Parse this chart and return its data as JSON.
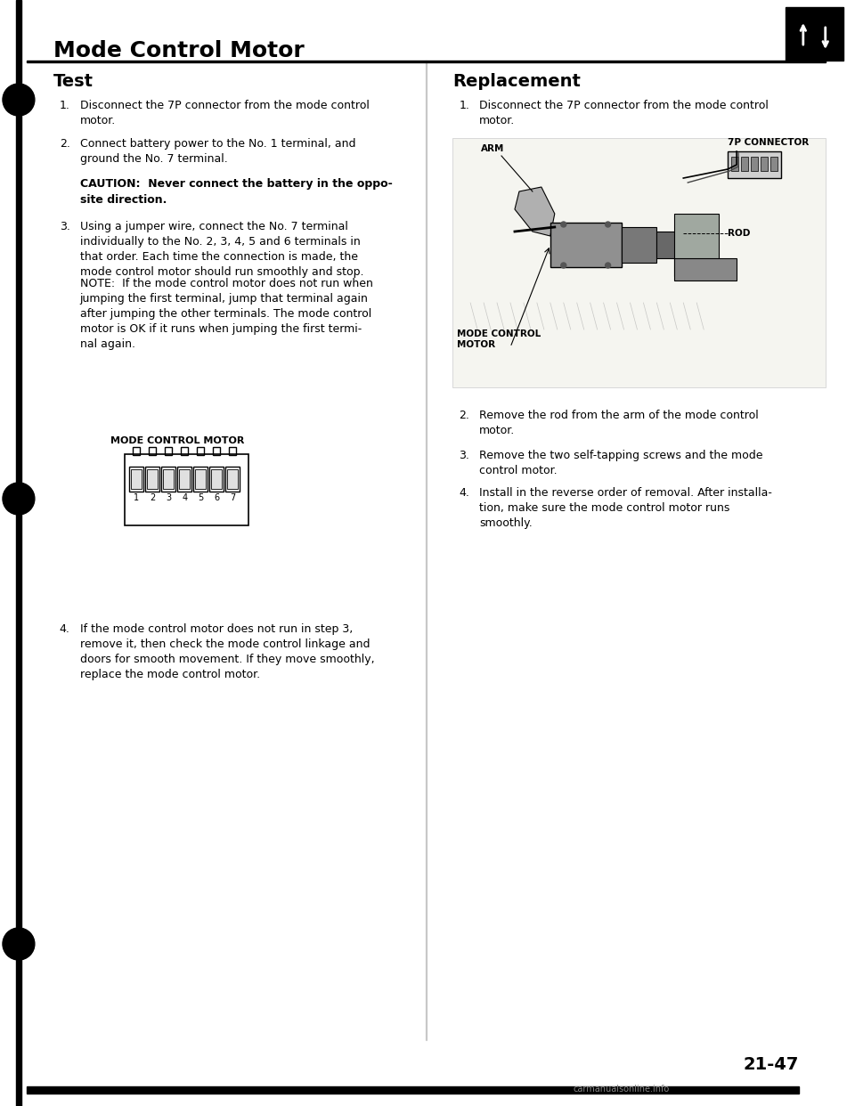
{
  "page_title": "Mode Control Motor",
  "page_number": "21-47",
  "watermark": "carmanualsonline.info",
  "bg_color": "#ffffff",
  "left_section": {
    "section_title": "Test",
    "items": [
      {
        "num": "1.",
        "text": "Disconnect the 7P connector from the mode control\nmotor."
      },
      {
        "num": "2.",
        "text": "Connect battery power to the No. 1 terminal, and\nground the No. 7 terminal."
      },
      {
        "num": "caution_label",
        "text": "CAUTION:",
        "bold_continuation": " Never connect the battery in the oppo-\nsite direction."
      },
      {
        "num": "3.",
        "text": "Using a jumper wire, connect the No. 7 terminal\nindividually to the No. 2, 3, 4, 5 and 6 terminals in\nthat order. Each time the connection is made, the\nmode control motor should run smoothly and stop."
      },
      {
        "num": "note_label",
        "text": "NOTE:",
        "note_continuation": "  If the mode control motor does not run when\njumping the first terminal, jump that terminal again\nafter jumping the other terminals. The mode control\nmotor is OK if it runs when jumping the first termi-\nnal again."
      }
    ],
    "diagram_label": "MODE CONTROL MOTOR",
    "item4": {
      "num": "4.",
      "text": "If the mode control motor does not run in step 3,\nremove it, then check the mode control linkage and\ndoors for smooth movement. If they move smoothly,\nreplace the mode control motor."
    }
  },
  "right_section": {
    "section_title": "Replacement",
    "items": [
      {
        "num": "1.",
        "text": "Disconnect the 7P connector from the mode control\nmotor."
      }
    ],
    "diagram_labels": {
      "arm": "ARM",
      "connector": "7P CONNECTOR",
      "rod": "ROD",
      "motor": "MODE CONTROL\nMOTOR"
    },
    "replacement_items": [
      {
        "num": "2.",
        "text": "Remove the rod from the arm of the mode control\nmotor."
      },
      {
        "num": "3.",
        "text": "Remove the two self-tapping screws and the mode\ncontrol motor."
      },
      {
        "num": "4.",
        "text": "Install in the reverse order of removal. After installa-\ntion, make sure the mode control motor runs\nsmoothly."
      }
    ]
  }
}
